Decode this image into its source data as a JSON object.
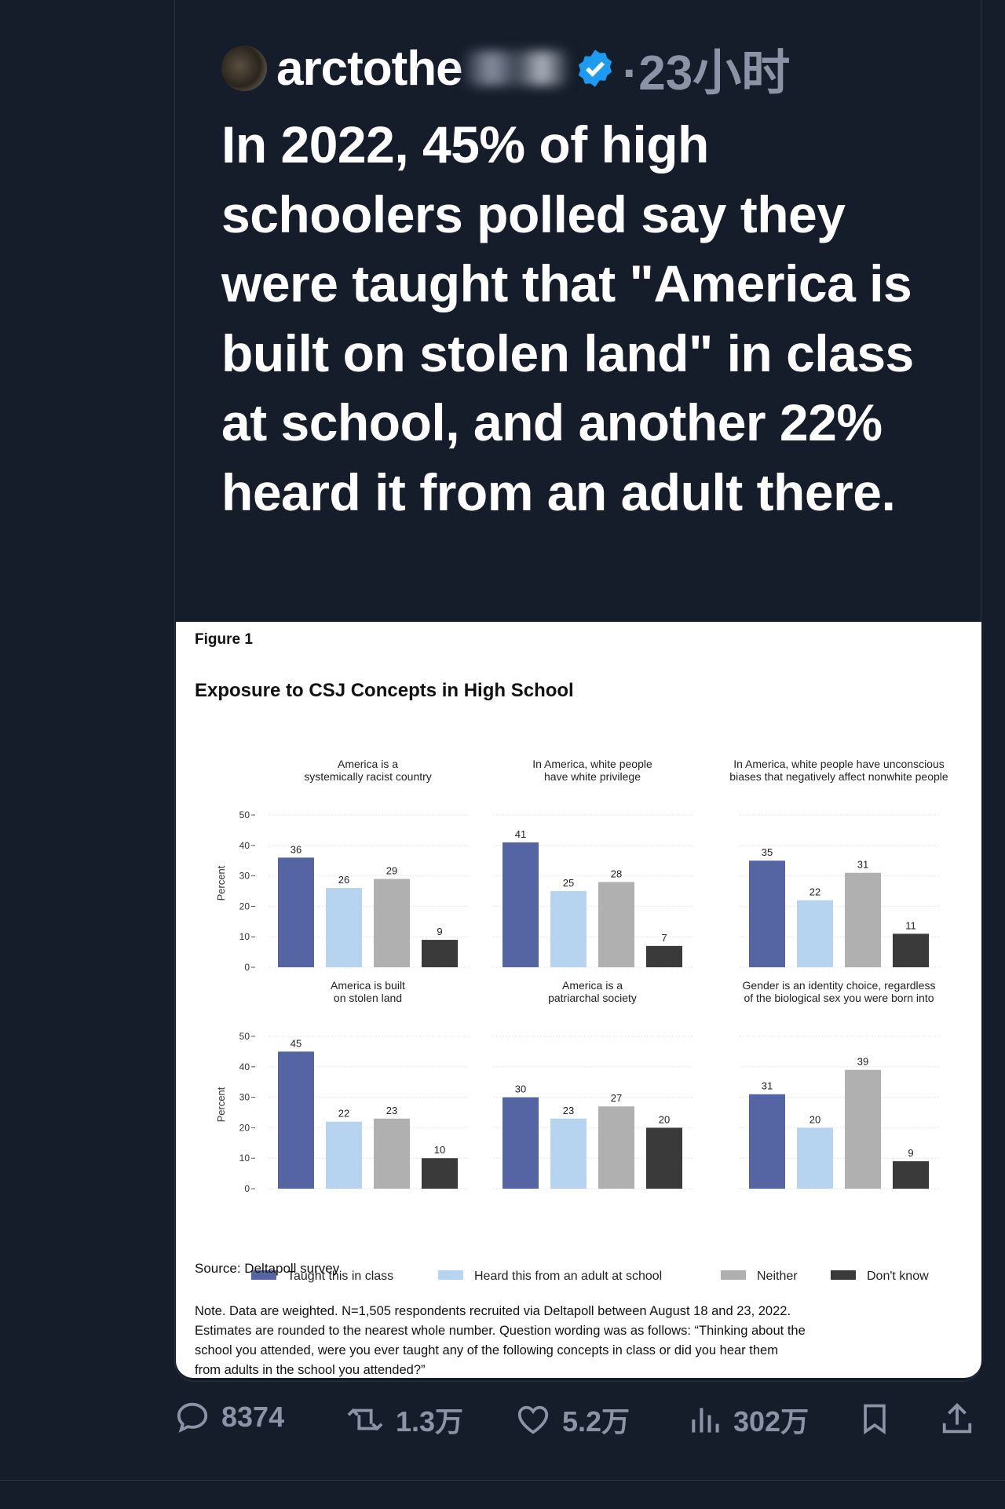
{
  "tweet": {
    "username": "arctothe",
    "time": "·23小时",
    "text": "In 2022, 45% of high schoolers polled say they were taught that \"America is built on stolen land\" in class at school, and another 22% heard it from an adult there."
  },
  "figure": {
    "label": "Figure 1",
    "title": "Exposure to CSJ Concepts in High School",
    "source": "Source: Deltapoll survey",
    "note": "Note. Data are weighted. N=1,505 respondents recruited via Deltapoll between August 18 and 23, 2022. Estimates are rounded to the nearest whole number. Question wording was as follows: “Thinking about the school you attended, were you ever taught any of the following concepts in class or did you hear them from adults in the school you attended?”"
  },
  "chart_data": {
    "type": "bar",
    "ylabel": "Percent",
    "ylim": [
      0,
      50
    ],
    "yticks": [
      0,
      10,
      20,
      30,
      40,
      50
    ],
    "legend": "bottom",
    "series_names": [
      "Taught this in class",
      "Heard this from an adult at school",
      "Neither",
      "Don't know"
    ],
    "colors": [
      "#5565a3",
      "#b6d3ef",
      "#b0b0b0",
      "#3a3a3a"
    ],
    "panels": [
      {
        "title": [
          "America is a",
          "systemically racist country"
        ],
        "values": [
          36,
          26,
          29,
          9
        ]
      },
      {
        "title": [
          "In America, white people",
          "have white privilege"
        ],
        "values": [
          41,
          25,
          28,
          7
        ]
      },
      {
        "title": [
          "In America, white people have unconscious",
          "biases that negatively affect nonwhite people"
        ],
        "values": [
          35,
          22,
          31,
          11
        ]
      },
      {
        "title": [
          "America is built",
          "on stolen land"
        ],
        "values": [
          45,
          22,
          23,
          10
        ]
      },
      {
        "title": [
          "America is a",
          "patriarchal society"
        ],
        "values": [
          30,
          23,
          27,
          20
        ]
      },
      {
        "title": [
          "Gender is an identity choice, regardless",
          "of the biological sex you were born into"
        ],
        "values": [
          31,
          20,
          39,
          9
        ]
      }
    ]
  },
  "actions": {
    "replies": "8374",
    "retweets": "1.3万",
    "likes": "5.2万",
    "views": "302万"
  },
  "colors": {
    "background": "#151d2b",
    "muted": "#8a94a6",
    "verified": "#1d9bf0"
  }
}
